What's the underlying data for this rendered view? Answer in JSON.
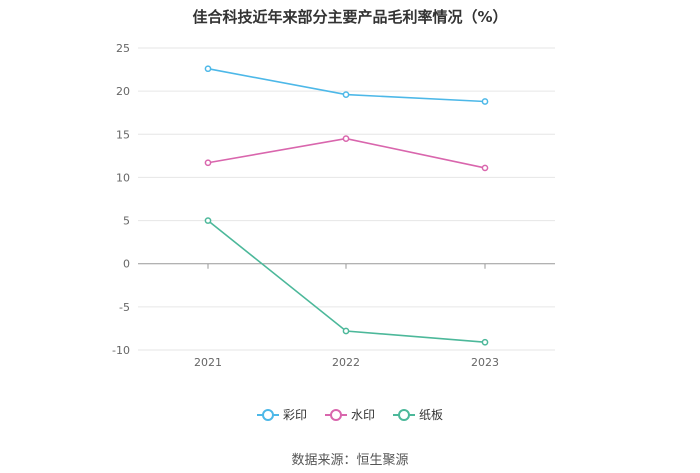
{
  "chart_data": {
    "type": "line",
    "title": "佳合科技近年来部分主要产品毛利率情况（%）",
    "categories": [
      "2021",
      "2022",
      "2023"
    ],
    "ylim": [
      -10,
      25
    ],
    "yticks": [
      25,
      20,
      15,
      10,
      5,
      0,
      -5,
      -10
    ],
    "grid": true,
    "legend_position": "bottom",
    "series": [
      {
        "name": "彩印",
        "color": "#4db8e8",
        "values": [
          22.6,
          19.6,
          18.8
        ]
      },
      {
        "name": "水印",
        "color": "#d966ad",
        "values": [
          11.7,
          14.5,
          11.1
        ]
      },
      {
        "name": "纸板",
        "color": "#4cb89a",
        "values": [
          5.0,
          -7.8,
          -9.1
        ]
      }
    ]
  },
  "source": "数据来源：恒生聚源"
}
